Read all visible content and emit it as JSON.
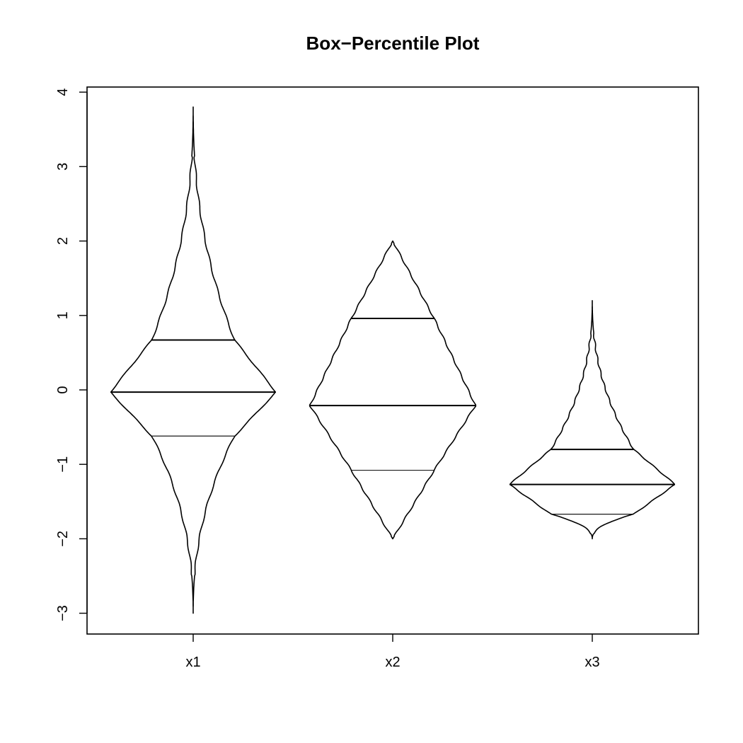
{
  "chart_data": {
    "type": "box-percentile",
    "title": "Box−Percentile Plot",
    "xlabel": "",
    "ylabel": "",
    "categories": [
      "x1",
      "x2",
      "x3"
    ],
    "ylim": [
      -3.3,
      4.1
    ],
    "y_ticks": [
      -3,
      -2,
      -1,
      0,
      1,
      2,
      3,
      4
    ],
    "y_tick_labels": [
      "−3",
      "−2",
      "−1",
      "0",
      "1",
      "2",
      "3",
      "4"
    ],
    "grid": false,
    "legend": "none",
    "series": [
      {
        "category": "x1",
        "min": -3.0,
        "max": 3.8,
        "q25": -0.62,
        "median": -0.03,
        "q75": 0.67,
        "shape": "normal"
      },
      {
        "category": "x2",
        "min": -2.0,
        "max": 2.0,
        "q25": -1.08,
        "median": -0.21,
        "q75": 0.96,
        "shape": "uniform"
      },
      {
        "category": "x3",
        "min": -2.0,
        "max": 1.2,
        "q25": -1.67,
        "median": -1.27,
        "q75": -0.8,
        "shape": "right-skewed"
      }
    ]
  }
}
